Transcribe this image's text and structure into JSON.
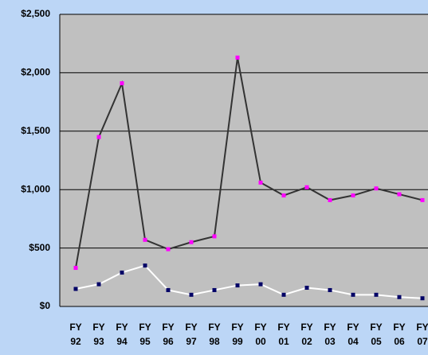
{
  "chart_data": {
    "type": "line",
    "categories": [
      "FY 92",
      "FY 93",
      "FY 94",
      "FY 95",
      "FY 96",
      "FY 97",
      "FY 98",
      "FY 99",
      "FY 00",
      "FY 01",
      "FY 02",
      "FY 03",
      "FY 04",
      "FY 05",
      "FY 06",
      "FY 07"
    ],
    "series": [
      {
        "color": "#333333",
        "marker_color": "#ff00ff",
        "values": [
          330,
          1450,
          1910,
          570,
          490,
          550,
          600,
          2130,
          1060,
          950,
          1020,
          910,
          950,
          1010,
          960,
          910
        ]
      },
      {
        "color": "#ffffff",
        "marker_color": "#000066",
        "values": [
          150,
          190,
          290,
          350,
          140,
          100,
          140,
          180,
          190,
          100,
          160,
          140,
          100,
          100,
          80,
          70
        ]
      }
    ],
    "ylim": [
      0,
      2500
    ],
    "yticks": [
      {
        "value": 0,
        "label": "$0"
      },
      {
        "value": 500,
        "label": "$500"
      },
      {
        "value": 1000,
        "label": "$1,000"
      },
      {
        "value": 1500,
        "label": "$1,500"
      },
      {
        "value": 2000,
        "label": "$2,000"
      },
      {
        "value": 2500,
        "label": "$2,500"
      }
    ],
    "grid": true
  }
}
